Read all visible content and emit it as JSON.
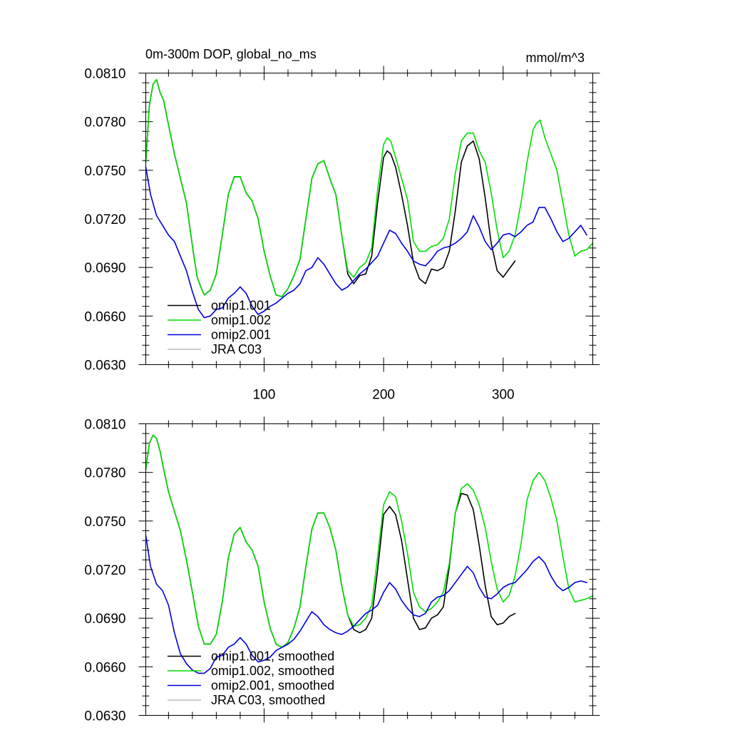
{
  "chart_data": [
    {
      "type": "line",
      "title": "0m-300m DOP, global_no_ms",
      "units": "mmol/m^3",
      "xlim": [
        1,
        375
      ],
      "ylim": [
        0.063,
        0.081
      ],
      "yticks": [
        "0.0810",
        "0.0780",
        "0.0750",
        "0.0720",
        "0.0690",
        "0.0660",
        "0.0630"
      ],
      "xticks": [
        "100",
        "200",
        "300"
      ],
      "legend": "bottom-left",
      "series": [
        {
          "name": "omip1.001",
          "color": "#000000",
          "x": [
            1,
            4,
            7,
            10,
            13,
            16,
            20,
            25,
            30,
            35,
            38,
            41,
            44,
            47,
            50,
            55,
            60,
            65,
            70,
            75,
            80,
            85,
            90,
            95,
            100,
            105,
            110,
            115,
            120,
            125,
            130,
            135,
            140,
            145,
            150,
            155,
            160,
            165,
            170,
            175,
            180,
            185,
            190,
            195,
            200,
            203,
            206,
            210,
            215,
            220,
            225,
            230,
            235,
            240,
            245,
            250,
            255,
            260,
            265,
            270,
            275,
            280,
            285,
            290,
            295,
            300,
            305,
            310
          ],
          "values": [
            0.0755,
            0.079,
            0.0803,
            0.0806,
            0.0798,
            0.0793,
            0.0778,
            0.076,
            0.0745,
            0.073,
            0.0714,
            0.0698,
            0.0684,
            0.0678,
            0.0673,
            0.0676,
            0.0686,
            0.071,
            0.0735,
            0.0746,
            0.0746,
            0.0736,
            0.0731,
            0.072,
            0.07,
            0.0685,
            0.0673,
            0.0672,
            0.0677,
            0.0685,
            0.0695,
            0.072,
            0.0745,
            0.0754,
            0.0756,
            0.0745,
            0.0735,
            0.071,
            0.0686,
            0.068,
            0.0685,
            0.0686,
            0.0697,
            0.073,
            0.0758,
            0.0762,
            0.076,
            0.0752,
            0.0735,
            0.0716,
            0.0693,
            0.0683,
            0.068,
            0.0689,
            0.0688,
            0.069,
            0.07,
            0.0725,
            0.0755,
            0.0765,
            0.0768,
            0.0757,
            0.0733,
            0.0705,
            0.0688,
            0.0684,
            0.0689,
            0.0694
          ]
        },
        {
          "name": "omip1.002",
          "color": "#00dd00",
          "x": [
            1,
            4,
            7,
            10,
            13,
            16,
            20,
            25,
            30,
            35,
            38,
            41,
            44,
            47,
            50,
            55,
            60,
            65,
            70,
            75,
            80,
            85,
            90,
            95,
            100,
            105,
            110,
            115,
            120,
            125,
            130,
            135,
            140,
            145,
            150,
            155,
            160,
            165,
            170,
            175,
            180,
            185,
            190,
            195,
            200,
            203,
            206,
            210,
            215,
            220,
            225,
            230,
            235,
            240,
            245,
            250,
            255,
            260,
            265,
            270,
            275,
            280,
            285,
            290,
            295,
            300,
            305,
            310,
            315,
            320,
            325,
            328,
            331,
            335,
            340,
            345,
            350,
            355,
            360,
            365,
            370,
            375
          ],
          "values": [
            0.0755,
            0.079,
            0.0803,
            0.0806,
            0.0798,
            0.0793,
            0.0778,
            0.076,
            0.0745,
            0.073,
            0.0714,
            0.0698,
            0.0684,
            0.0678,
            0.0673,
            0.0676,
            0.0686,
            0.071,
            0.0735,
            0.0746,
            0.0746,
            0.0736,
            0.0731,
            0.072,
            0.07,
            0.0685,
            0.0673,
            0.0672,
            0.0677,
            0.0685,
            0.0695,
            0.072,
            0.0745,
            0.0754,
            0.0756,
            0.0745,
            0.0735,
            0.071,
            0.0688,
            0.0684,
            0.069,
            0.0693,
            0.0702,
            0.0738,
            0.0766,
            0.077,
            0.0768,
            0.0758,
            0.0745,
            0.0732,
            0.0706,
            0.07,
            0.07,
            0.0703,
            0.0704,
            0.0708,
            0.072,
            0.0748,
            0.0768,
            0.0773,
            0.0773,
            0.0762,
            0.0755,
            0.0736,
            0.0713,
            0.0696,
            0.07,
            0.071,
            0.073,
            0.0755,
            0.0775,
            0.0779,
            0.0781,
            0.077,
            0.076,
            0.075,
            0.073,
            0.071,
            0.0697,
            0.07,
            0.0701,
            0.0705
          ]
        },
        {
          "name": "omip2.001",
          "color": "#0000dd",
          "x": [
            1,
            5,
            10,
            15,
            20,
            25,
            30,
            35,
            40,
            45,
            50,
            55,
            60,
            65,
            70,
            75,
            80,
            85,
            90,
            95,
            100,
            105,
            110,
            115,
            120,
            125,
            130,
            135,
            140,
            145,
            150,
            155,
            160,
            165,
            170,
            175,
            180,
            185,
            190,
            195,
            200,
            205,
            210,
            215,
            220,
            225,
            230,
            235,
            240,
            245,
            250,
            255,
            260,
            265,
            270,
            275,
            280,
            285,
            290,
            295,
            300,
            305,
            310,
            315,
            320,
            325,
            330,
            335,
            340,
            345,
            350,
            355,
            360,
            365,
            370
          ],
          "values": [
            0.0752,
            0.0735,
            0.0722,
            0.0716,
            0.071,
            0.0706,
            0.0697,
            0.0688,
            0.0675,
            0.0664,
            0.0659,
            0.066,
            0.0664,
            0.0665,
            0.0671,
            0.0674,
            0.0678,
            0.0674,
            0.0666,
            0.0661,
            0.0663,
            0.0666,
            0.0668,
            0.0671,
            0.0674,
            0.0676,
            0.068,
            0.0688,
            0.069,
            0.0696,
            0.0692,
            0.0686,
            0.068,
            0.0676,
            0.0678,
            0.0682,
            0.0686,
            0.0689,
            0.0693,
            0.0697,
            0.0705,
            0.0713,
            0.0711,
            0.0705,
            0.07,
            0.0694,
            0.0692,
            0.0691,
            0.0695,
            0.07,
            0.0702,
            0.0703,
            0.0705,
            0.0708,
            0.0712,
            0.0722,
            0.0715,
            0.0706,
            0.0701,
            0.0705,
            0.071,
            0.0711,
            0.0709,
            0.0712,
            0.0716,
            0.0718,
            0.0727,
            0.0727,
            0.072,
            0.0712,
            0.0706,
            0.0708,
            0.0712,
            0.0716,
            0.071
          ]
        },
        {
          "name": "JRA C03",
          "color": "#bbbbbb",
          "x": [],
          "values": []
        }
      ]
    },
    {
      "type": "line",
      "title": "",
      "units": "",
      "xlim": [
        1,
        375
      ],
      "ylim": [
        0.063,
        0.081
      ],
      "yticks": [
        "0.0810",
        "0.0780",
        "0.0750",
        "0.0720",
        "0.0690",
        "0.0660",
        "0.0630"
      ],
      "xticks": [],
      "legend": "bottom-left",
      "series": [
        {
          "name": "omip1.001, smoothed",
          "color": "#000000",
          "x": [
            1,
            4,
            7,
            10,
            13,
            16,
            20,
            25,
            30,
            35,
            40,
            45,
            50,
            55,
            60,
            65,
            70,
            75,
            80,
            85,
            90,
            95,
            100,
            105,
            110,
            115,
            120,
            125,
            130,
            135,
            140,
            145,
            150,
            155,
            160,
            165,
            170,
            175,
            180,
            185,
            190,
            195,
            200,
            205,
            210,
            215,
            220,
            225,
            230,
            235,
            240,
            245,
            250,
            255,
            260,
            265,
            270,
            275,
            280,
            285,
            290,
            295,
            300,
            305,
            310
          ],
          "values": [
            0.0782,
            0.0798,
            0.0803,
            0.0801,
            0.0793,
            0.0782,
            0.0768,
            0.0756,
            0.0744,
            0.0726,
            0.0706,
            0.0685,
            0.0674,
            0.0674,
            0.068,
            0.07,
            0.0727,
            0.0742,
            0.0746,
            0.0737,
            0.0732,
            0.0722,
            0.07,
            0.0684,
            0.0674,
            0.0672,
            0.0675,
            0.0684,
            0.0697,
            0.0722,
            0.0745,
            0.0755,
            0.0755,
            0.0746,
            0.0732,
            0.071,
            0.0692,
            0.0683,
            0.0681,
            0.0683,
            0.069,
            0.072,
            0.0754,
            0.0759,
            0.0754,
            0.0738,
            0.0714,
            0.069,
            0.0683,
            0.0684,
            0.069,
            0.0692,
            0.0697,
            0.0722,
            0.0755,
            0.0767,
            0.0766,
            0.0757,
            0.0735,
            0.071,
            0.0691,
            0.0686,
            0.0687,
            0.0691,
            0.0693
          ]
        },
        {
          "name": "omip1.002, smoothed",
          "color": "#00dd00",
          "x": [
            1,
            4,
            7,
            10,
            13,
            16,
            20,
            25,
            30,
            35,
            40,
            45,
            50,
            55,
            60,
            65,
            70,
            75,
            80,
            85,
            90,
            95,
            100,
            105,
            110,
            115,
            120,
            125,
            130,
            135,
            140,
            145,
            150,
            155,
            160,
            165,
            170,
            175,
            180,
            185,
            190,
            195,
            200,
            205,
            210,
            215,
            220,
            225,
            230,
            235,
            240,
            245,
            250,
            255,
            260,
            265,
            270,
            275,
            280,
            285,
            290,
            295,
            300,
            305,
            310,
            315,
            320,
            325,
            330,
            335,
            340,
            345,
            350,
            355,
            360,
            365,
            370,
            375
          ],
          "values": [
            0.0782,
            0.0798,
            0.0803,
            0.0801,
            0.0793,
            0.0782,
            0.0768,
            0.0756,
            0.0744,
            0.0726,
            0.0706,
            0.0685,
            0.0674,
            0.0674,
            0.068,
            0.07,
            0.0727,
            0.0742,
            0.0746,
            0.0737,
            0.0732,
            0.0722,
            0.07,
            0.0684,
            0.0674,
            0.0672,
            0.0675,
            0.0684,
            0.0697,
            0.0722,
            0.0745,
            0.0755,
            0.0755,
            0.0746,
            0.0732,
            0.071,
            0.0692,
            0.0685,
            0.0686,
            0.069,
            0.0698,
            0.0728,
            0.076,
            0.0768,
            0.0765,
            0.075,
            0.073,
            0.0706,
            0.0697,
            0.0694,
            0.0696,
            0.07,
            0.0706,
            0.0724,
            0.0755,
            0.077,
            0.0773,
            0.0769,
            0.076,
            0.0746,
            0.0725,
            0.0708,
            0.07,
            0.0704,
            0.0716,
            0.0736,
            0.0763,
            0.0775,
            0.078,
            0.0775,
            0.0764,
            0.075,
            0.0728,
            0.0708,
            0.07,
            0.0701,
            0.0702,
            0.0704
          ]
        },
        {
          "name": "omip2.001, smoothed",
          "color": "#0000dd",
          "x": [
            1,
            5,
            10,
            15,
            20,
            25,
            30,
            35,
            40,
            45,
            50,
            55,
            60,
            65,
            70,
            75,
            80,
            85,
            90,
            95,
            100,
            105,
            110,
            115,
            120,
            125,
            130,
            135,
            140,
            145,
            150,
            155,
            160,
            165,
            170,
            175,
            180,
            185,
            190,
            195,
            200,
            205,
            210,
            215,
            220,
            225,
            230,
            235,
            240,
            245,
            250,
            255,
            260,
            265,
            270,
            275,
            280,
            285,
            290,
            295,
            300,
            305,
            310,
            315,
            320,
            325,
            330,
            335,
            340,
            345,
            350,
            355,
            360,
            365,
            370
          ],
          "values": [
            0.0741,
            0.0722,
            0.0711,
            0.0707,
            0.0698,
            0.0681,
            0.0668,
            0.0662,
            0.0658,
            0.0656,
            0.0656,
            0.0659,
            0.0666,
            0.0667,
            0.0672,
            0.0674,
            0.0678,
            0.0674,
            0.0667,
            0.0663,
            0.0664,
            0.0666,
            0.067,
            0.0672,
            0.0674,
            0.0677,
            0.0682,
            0.0688,
            0.0694,
            0.0691,
            0.0686,
            0.0683,
            0.0681,
            0.068,
            0.0682,
            0.0685,
            0.0689,
            0.0693,
            0.0695,
            0.0698,
            0.0706,
            0.0712,
            0.0708,
            0.0701,
            0.0696,
            0.0692,
            0.0691,
            0.0693,
            0.07,
            0.0703,
            0.0704,
            0.0707,
            0.0712,
            0.0717,
            0.0722,
            0.0718,
            0.0709,
            0.0703,
            0.0702,
            0.0705,
            0.0709,
            0.0711,
            0.0712,
            0.0716,
            0.072,
            0.0725,
            0.0728,
            0.0724,
            0.0716,
            0.071,
            0.0707,
            0.0709,
            0.0712,
            0.0713,
            0.0712
          ]
        },
        {
          "name": "JRA C03, smoothed",
          "color": "#bbbbbb",
          "x": [],
          "values": []
        }
      ]
    }
  ]
}
